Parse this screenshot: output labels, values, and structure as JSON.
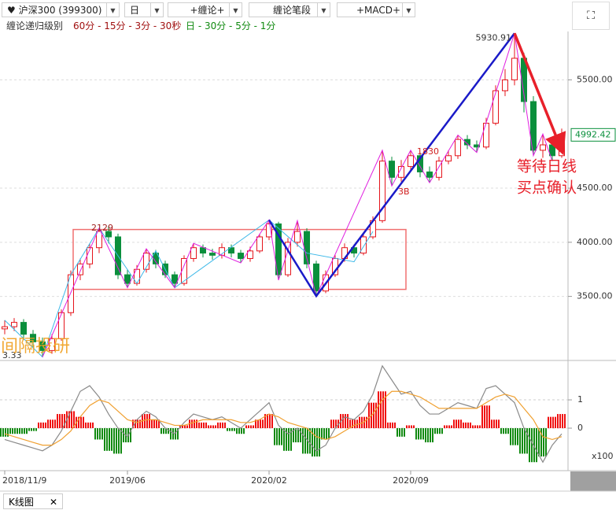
{
  "toolbar": {
    "symbol": "沪深300 (399300)",
    "period": "日",
    "chan": "+缠论+",
    "strokes": "缠论笔段",
    "indicator": "+MACD+"
  },
  "levels": {
    "label": "缠论递归级别",
    "minor": "60分 - 15分 - 3分 - 30秒",
    "major": "日 - 30分 - 5分 - 1分"
  },
  "footer": {
    "tab": "K线图"
  },
  "chart_data": [
    {
      "type": "candlestick",
      "categories": [
        "2018/11/9",
        null,
        null,
        null,
        null,
        null,
        null,
        null,
        null,
        null,
        null,
        null,
        null,
        "2019/06",
        null,
        null,
        null,
        null,
        null,
        null,
        null,
        null,
        null,
        null,
        null,
        null,
        null,
        null,
        "2020/02",
        null,
        null,
        null,
        null,
        null,
        null,
        null,
        null,
        null,
        null,
        null,
        null,
        null,
        null,
        "2020/09",
        null,
        null,
        null,
        null,
        null,
        null,
        null,
        null,
        null,
        null,
        null,
        null,
        null,
        null,
        null,
        null
      ],
      "candles": [
        [
          3200,
          3280,
          3150,
          3220
        ],
        [
          3220,
          3300,
          3180,
          3260
        ],
        [
          3260,
          3290,
          3100,
          3150
        ],
        [
          3150,
          3190,
          3030,
          3080
        ],
        [
          3080,
          3120,
          2940,
          3000
        ],
        [
          3000,
          3150,
          2970,
          3110
        ],
        [
          3110,
          3380,
          3090,
          3350
        ],
        [
          3350,
          3740,
          3320,
          3700
        ],
        [
          3700,
          3850,
          3650,
          3800
        ],
        [
          3800,
          3990,
          3760,
          3950
        ],
        [
          3950,
          4130,
          3900,
          4100
        ],
        [
          4100,
          4150,
          3990,
          4050
        ],
        [
          4050,
          4080,
          3660,
          3700
        ],
        [
          3700,
          3750,
          3580,
          3620
        ],
        [
          3620,
          3790,
          3600,
          3750
        ],
        [
          3750,
          3940,
          3720,
          3900
        ],
        [
          3900,
          3930,
          3760,
          3800
        ],
        [
          3800,
          3830,
          3670,
          3700
        ],
        [
          3700,
          3730,
          3580,
          3620
        ],
        [
          3620,
          3880,
          3600,
          3850
        ],
        [
          3850,
          3990,
          3820,
          3950
        ],
        [
          3950,
          3980,
          3860,
          3900
        ],
        [
          3900,
          3940,
          3840,
          3880
        ],
        [
          3880,
          3990,
          3850,
          3950
        ],
        [
          3950,
          3980,
          3860,
          3900
        ],
        [
          3900,
          3930,
          3810,
          3850
        ],
        [
          3850,
          3960,
          3820,
          3920
        ],
        [
          3920,
          4080,
          3900,
          4050
        ],
        [
          4050,
          4206,
          4020,
          4170
        ],
        [
          4170,
          4190,
          3650,
          3700
        ],
        [
          3700,
          4040,
          3680,
          4000
        ],
        [
          4000,
          4200,
          3960,
          4100
        ],
        [
          4100,
          4130,
          3760,
          3800
        ],
        [
          3800,
          3830,
          3503,
          3550
        ],
        [
          3550,
          3740,
          3530,
          3700
        ],
        [
          3700,
          3880,
          3680,
          3850
        ],
        [
          3850,
          3990,
          3820,
          3950
        ],
        [
          3950,
          3980,
          3860,
          3900
        ],
        [
          3900,
          4080,
          3880,
          4050
        ],
        [
          4050,
          4240,
          4030,
          4200
        ],
        [
          4200,
          4850,
          4180,
          4750
        ],
        [
          4750,
          4790,
          4520,
          4600
        ],
        [
          4600,
          4760,
          4560,
          4700
        ],
        [
          4700,
          4850,
          4660,
          4800
        ],
        [
          4800,
          4830,
          4600,
          4650
        ],
        [
          4650,
          4700,
          4550,
          4600
        ],
        [
          4600,
          4790,
          4570,
          4750
        ],
        [
          4750,
          4850,
          4720,
          4800
        ],
        [
          4800,
          4990,
          4770,
          4950
        ],
        [
          4950,
          4990,
          4860,
          4900
        ],
        [
          4900,
          4940,
          4830,
          4880
        ],
        [
          4880,
          5150,
          4860,
          5100
        ],
        [
          5100,
          5450,
          5080,
          5400
        ],
        [
          5400,
          5600,
          5350,
          5500
        ],
        [
          5500,
          5930.91,
          5450,
          5700
        ],
        [
          5700,
          5750,
          5200,
          5300
        ],
        [
          5300,
          5350,
          4800,
          4850
        ],
        [
          4850,
          5000,
          4780,
          4900
        ],
        [
          4900,
          4950,
          4750,
          4800
        ],
        [
          4800,
          5050,
          4780,
          4992.42
        ]
      ],
      "up_color": "#e5141b",
      "down_color": "#0a8f3c",
      "ylim": [
        2930,
        6020
      ],
      "yticks": [
        {
          "value": 3500,
          "label": "3500.00"
        },
        {
          "value": 4000,
          "label": "4000.00"
        },
        {
          "value": 4500,
          "label": "4500.00"
        },
        {
          "value": 5500,
          "label": "5500.00"
        }
      ],
      "grid": true,
      "strokes": {
        "color": "#e020e0",
        "points": [
          [
            4,
            2940
          ],
          [
            10,
            4130
          ],
          [
            13,
            3580
          ],
          [
            15,
            3940
          ],
          [
            18,
            3580
          ],
          [
            20,
            3990
          ],
          [
            25,
            3810
          ],
          [
            28,
            4206
          ],
          [
            29,
            3650
          ],
          [
            31,
            4200
          ],
          [
            33,
            3503
          ],
          [
            40,
            4850
          ],
          [
            41,
            4520
          ],
          [
            43,
            4850
          ],
          [
            45,
            4550
          ],
          [
            48,
            4990
          ],
          [
            50,
            4830
          ],
          [
            54,
            5930.91
          ],
          [
            56,
            4800
          ],
          [
            57,
            5000
          ],
          [
            58,
            4750
          ]
        ]
      },
      "sub_strokes": {
        "color": "#3cb8e8",
        "points": [
          [
            0,
            3280
          ],
          [
            4,
            2940
          ],
          [
            7,
            3700
          ],
          [
            10,
            4130
          ],
          [
            14,
            3620
          ],
          [
            16,
            3920
          ],
          [
            18,
            3580
          ],
          [
            28,
            4206
          ],
          [
            32,
            3900
          ],
          [
            37,
            3820
          ],
          [
            39,
            4100
          ]
        ]
      },
      "segments": {
        "color": "#1a1ac8",
        "points": [
          [
            28,
            4206
          ],
          [
            33,
            3503
          ],
          [
            54,
            5930.91
          ]
        ]
      },
      "arrow": {
        "color": "#e8202a",
        "points": [
          [
            54,
            5930.91
          ],
          [
            59,
            4850
          ]
        ]
      },
      "zone": {
        "color": "#f07070",
        "from": 7.25,
        "to": 42.5,
        "low": 3565,
        "high": 4118
      },
      "annotations": [
        "2129",
        "1830",
        "3B",
        "3.33"
      ],
      "callout": [
        "等待日线",
        "买点确认"
      ],
      "watermark": "间隔投研"
    },
    {
      "type": "macd",
      "histogram": [
        -0.3,
        -0.2,
        -0.2,
        -0.1,
        0.2,
        0.3,
        0.5,
        0.6,
        0.4,
        0.2,
        -0.4,
        -0.8,
        -0.9,
        -0.5,
        0.3,
        0.5,
        0.3,
        -0.2,
        -0.4,
        0.1,
        0.3,
        0.2,
        0.1,
        0.2,
        -0.1,
        -0.2,
        0.1,
        0.3,
        0.5,
        -0.6,
        -0.8,
        -0.5,
        -0.9,
        -1.0,
        -0.4,
        0.3,
        0.5,
        0.3,
        0.4,
        0.9,
        1.3,
        0.2,
        -0.3,
        0.1,
        -0.4,
        -0.5,
        -0.2,
        0.1,
        0.3,
        0.2,
        0.1,
        0.8,
        0.3,
        -0.2,
        -0.6,
        -0.9,
        -1.2,
        -1.0,
        0.4,
        0.5
      ],
      "series": [
        {
          "color": "#8a8a8a",
          "values": [
            -0.4,
            -0.5,
            -0.6,
            -0.7,
            -0.8,
            -0.6,
            -0.1,
            0.6,
            1.3,
            1.5,
            1.1,
            0.5,
            0.0,
            -0.3,
            0.3,
            0.6,
            0.4,
            0.0,
            -0.2,
            0.2,
            0.5,
            0.4,
            0.3,
            0.4,
            0.2,
            0.0,
            0.3,
            0.6,
            0.9,
            0.1,
            -0.2,
            0.0,
            -0.4,
            -0.8,
            -0.6,
            0.0,
            0.4,
            0.3,
            0.6,
            1.2,
            2.2,
            1.7,
            1.2,
            1.3,
            0.8,
            0.5,
            0.5,
            0.7,
            0.9,
            0.8,
            0.7,
            1.4,
            1.5,
            1.2,
            0.9,
            0.0,
            -0.6,
            -1.2,
            -0.6,
            -0.2
          ]
        },
        {
          "color": "#f0a030",
          "values": [
            -0.2,
            -0.3,
            -0.4,
            -0.5,
            -0.6,
            -0.6,
            -0.4,
            -0.1,
            0.4,
            0.8,
            1.0,
            0.9,
            0.6,
            0.3,
            0.2,
            0.3,
            0.3,
            0.2,
            0.1,
            0.1,
            0.2,
            0.3,
            0.3,
            0.3,
            0.3,
            0.2,
            0.2,
            0.3,
            0.5,
            0.4,
            0.2,
            0.1,
            0.0,
            -0.3,
            -0.4,
            -0.3,
            -0.1,
            0.1,
            0.2,
            0.5,
            1.0,
            1.3,
            1.3,
            1.2,
            1.1,
            0.9,
            0.7,
            0.7,
            0.7,
            0.7,
            0.7,
            0.9,
            1.1,
            1.2,
            1.1,
            0.7,
            0.3,
            -0.3,
            -0.4,
            -0.3
          ]
        }
      ],
      "up_color": "#f01010",
      "down_color": "#108a10",
      "ylim": [
        -1.5,
        2.28
      ],
      "yticks": [
        0,
        1
      ],
      "unit": "x100"
    }
  ]
}
